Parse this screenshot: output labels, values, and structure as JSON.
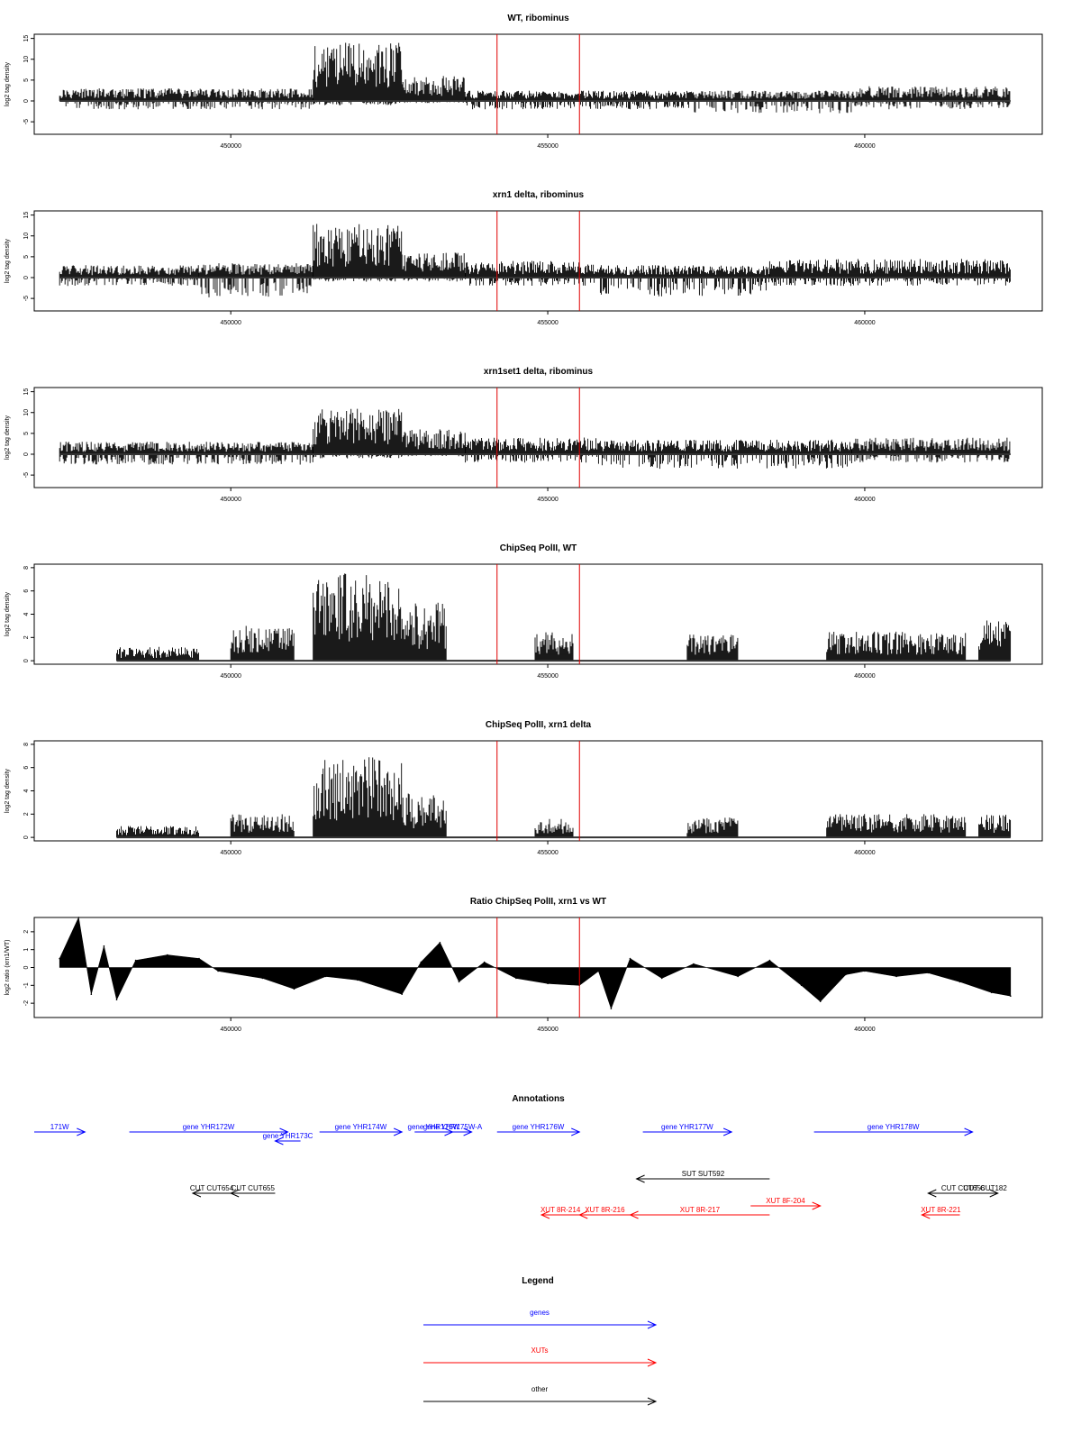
{
  "colors": {
    "trace": "#000000",
    "marker": "#e00000",
    "gene": "#0000ff",
    "xut": "#ff0000",
    "other": "#000000"
  },
  "chart_data": [
    {
      "type": "bar",
      "title": "WT, ribominus",
      "ylabel": "log2 tag density",
      "ylim": [
        -8,
        16
      ],
      "yticks": [
        -5,
        0,
        5,
        10,
        15
      ],
      "xlim": [
        446900,
        462800
      ],
      "xticks": [
        450000,
        455000,
        460000
      ],
      "xticklabels": [
        "450000",
        "455000",
        "460000"
      ],
      "markers": [
        454200,
        455500
      ],
      "profile": [
        {
          "start": 447300,
          "end": 451300,
          "pos": 3,
          "neg": -2
        },
        {
          "start": 451300,
          "end": 452700,
          "pos": 14,
          "neg": -1
        },
        {
          "start": 452700,
          "end": 453700,
          "pos": 6,
          "neg": -0.5
        },
        {
          "start": 453700,
          "end": 457300,
          "pos": 2.5,
          "neg": -2
        },
        {
          "start": 457300,
          "end": 459800,
          "pos": 2.5,
          "neg": -3
        },
        {
          "start": 459800,
          "end": 462300,
          "pos": 3.5,
          "neg": -2
        }
      ]
    },
    {
      "type": "bar",
      "title": "xrn1 delta, ribominus",
      "ylabel": "log2 tag density",
      "ylim": [
        -8,
        16
      ],
      "yticks": [
        -5,
        0,
        5,
        10,
        15
      ],
      "xlim": [
        446900,
        462800
      ],
      "xticks": [
        450000,
        455000,
        460000
      ],
      "xticklabels": [
        "450000",
        "455000",
        "460000"
      ],
      "markers": [
        454200,
        455500
      ],
      "profile": [
        {
          "start": 447300,
          "end": 449500,
          "pos": 3,
          "neg": -2
        },
        {
          "start": 449500,
          "end": 451300,
          "pos": 3.5,
          "neg": -5
        },
        {
          "start": 451300,
          "end": 452700,
          "pos": 13,
          "neg": -1
        },
        {
          "start": 452700,
          "end": 453700,
          "pos": 6,
          "neg": -1
        },
        {
          "start": 453700,
          "end": 455800,
          "pos": 4,
          "neg": -2
        },
        {
          "start": 455800,
          "end": 458500,
          "pos": 3,
          "neg": -4.5
        },
        {
          "start": 458500,
          "end": 462300,
          "pos": 4.5,
          "neg": -2
        }
      ]
    },
    {
      "type": "bar",
      "title": "xrn1set1 delta, ribominus",
      "ylabel": "log2 tag density",
      "ylim": [
        -8,
        16
      ],
      "yticks": [
        -5,
        0,
        5,
        10,
        15
      ],
      "xlim": [
        446900,
        462800
      ],
      "xticks": [
        450000,
        455000,
        460000
      ],
      "xticklabels": [
        "450000",
        "455000",
        "460000"
      ],
      "markers": [
        454200,
        455500
      ],
      "profile": [
        {
          "start": 447300,
          "end": 451300,
          "pos": 3,
          "neg": -2.5
        },
        {
          "start": 451300,
          "end": 452700,
          "pos": 11,
          "neg": -1
        },
        {
          "start": 452700,
          "end": 453700,
          "pos": 6,
          "neg": -0.5
        },
        {
          "start": 453700,
          "end": 455800,
          "pos": 4,
          "neg": -2
        },
        {
          "start": 455800,
          "end": 459800,
          "pos": 3.5,
          "neg": -3.5
        },
        {
          "start": 459800,
          "end": 462300,
          "pos": 4,
          "neg": -2
        }
      ]
    },
    {
      "type": "bar",
      "title": "ChipSeq PolII, WT",
      "ylabel": "log2 tag density",
      "ylim": [
        -0.3,
        8.3
      ],
      "yticks": [
        0,
        2,
        4,
        6,
        8
      ],
      "xlim": [
        446900,
        462800
      ],
      "xticks": [
        450000,
        455000,
        460000
      ],
      "xticklabels": [
        "450000",
        "455000",
        "460000"
      ],
      "markers": [
        454200,
        455500
      ],
      "profile": [
        {
          "start": 448200,
          "end": 449500,
          "pos": 1.2,
          "neg": 0
        },
        {
          "start": 450000,
          "end": 451000,
          "pos": 3,
          "neg": 0
        },
        {
          "start": 451300,
          "end": 452700,
          "pos": 7.5,
          "neg": 0
        },
        {
          "start": 452700,
          "end": 453400,
          "pos": 5,
          "neg": 0
        },
        {
          "start": 454800,
          "end": 455400,
          "pos": 2.5,
          "neg": 0
        },
        {
          "start": 457200,
          "end": 458000,
          "pos": 2.3,
          "neg": 0
        },
        {
          "start": 459400,
          "end": 461600,
          "pos": 2.5,
          "neg": 0
        },
        {
          "start": 461800,
          "end": 462300,
          "pos": 3.5,
          "neg": 0
        }
      ]
    },
    {
      "type": "bar",
      "title": "ChipSeq PolII, xrn1 delta",
      "ylabel": "log2 tag density",
      "ylim": [
        -0.3,
        8.3
      ],
      "yticks": [
        0,
        2,
        4,
        6,
        8
      ],
      "xlim": [
        446900,
        462800
      ],
      "xticks": [
        450000,
        455000,
        460000
      ],
      "xticklabels": [
        "450000",
        "455000",
        "460000"
      ],
      "markers": [
        454200,
        455500
      ],
      "profile": [
        {
          "start": 448200,
          "end": 449500,
          "pos": 1,
          "neg": 0
        },
        {
          "start": 450000,
          "end": 451000,
          "pos": 2,
          "neg": 0
        },
        {
          "start": 451300,
          "end": 452700,
          "pos": 7,
          "neg": 0
        },
        {
          "start": 452700,
          "end": 453400,
          "pos": 3.8,
          "neg": 0
        },
        {
          "start": 454800,
          "end": 455400,
          "pos": 1.6,
          "neg": 0
        },
        {
          "start": 457200,
          "end": 458000,
          "pos": 1.8,
          "neg": 0
        },
        {
          "start": 459400,
          "end": 461600,
          "pos": 2,
          "neg": 0
        },
        {
          "start": 461800,
          "end": 462300,
          "pos": 2,
          "neg": 0
        }
      ]
    },
    {
      "type": "area",
      "title": "Ratio ChipSeq PolII, xrn1 vs WT",
      "ylabel": "log2 ratio (xrn1/WT)",
      "ylim": [
        -2.8,
        2.8
      ],
      "yticks": [
        -2,
        -1,
        0,
        1,
        2
      ],
      "xlim": [
        446900,
        462800
      ],
      "xticks": [
        450000,
        455000,
        460000
      ],
      "xticklabels": [
        "450000",
        "455000",
        "460000"
      ],
      "markers": [
        454200,
        455500
      ],
      "x": [
        447300,
        447600,
        447800,
        448000,
        448200,
        448500,
        449000,
        449500,
        449800,
        450500,
        451000,
        451500,
        452000,
        452700,
        453000,
        453300,
        453600,
        454000,
        454500,
        455000,
        455500,
        455800,
        456000,
        456300,
        456800,
        457300,
        458000,
        458500,
        459000,
        459300,
        459700,
        460000,
        460500,
        461000,
        461500,
        462000,
        462300
      ],
      "y": [
        0.5,
        2.8,
        -1.5,
        1.2,
        -1.8,
        0.4,
        0.7,
        0.5,
        -0.2,
        -0.6,
        -1.2,
        -0.5,
        -0.7,
        -1.5,
        0.3,
        1.4,
        -0.8,
        0.3,
        -0.6,
        -0.9,
        -1.0,
        -0.2,
        -2.3,
        0.5,
        -0.6,
        0.2,
        -0.5,
        0.4,
        -1.0,
        -1.9,
        -0.4,
        -0.2,
        -0.5,
        -0.3,
        -0.8,
        -1.4,
        -1.6
      ]
    }
  ],
  "annotations": {
    "title": "Annotations",
    "features": [
      {
        "label": "171W",
        "kind": "gene",
        "start": 446900,
        "end": 447700,
        "strand": "+",
        "row": 0
      },
      {
        "label": "gene YHR172W",
        "kind": "gene",
        "start": 448400,
        "end": 450900,
        "strand": "+",
        "row": 0
      },
      {
        "label": "gene YHR173C",
        "kind": "gene",
        "start": 450700,
        "end": 451100,
        "strand": "-",
        "row": 1
      },
      {
        "label": "gene YHR174W",
        "kind": "gene",
        "start": 451400,
        "end": 452700,
        "strand": "+",
        "row": 0
      },
      {
        "label": "gene YHR175W",
        "kind": "gene",
        "start": 452900,
        "end": 453500,
        "strand": "+",
        "row": 0
      },
      {
        "label": "gene YHR175W-A",
        "kind": "gene",
        "start": 453200,
        "end": 453800,
        "strand": "+",
        "row": 0
      },
      {
        "label": "gene YHR176W",
        "kind": "gene",
        "start": 454200,
        "end": 455500,
        "strand": "+",
        "row": 0
      },
      {
        "label": "gene YHR177W",
        "kind": "gene",
        "start": 456500,
        "end": 457900,
        "strand": "+",
        "row": 0
      },
      {
        "label": "gene YHR178W",
        "kind": "gene",
        "start": 459200,
        "end": 461700,
        "strand": "+",
        "row": 0
      },
      {
        "label": "SUT SUT592",
        "kind": "other",
        "start": 456400,
        "end": 458500,
        "strand": "-",
        "row": 2
      },
      {
        "label": "CUT CUT182",
        "kind": "other",
        "start": 461700,
        "end": 462100,
        "strand": "+",
        "row": 3
      },
      {
        "label": "CUT CUT654",
        "kind": "other",
        "start": 449400,
        "end": 450000,
        "strand": "-",
        "row": 3
      },
      {
        "label": "CUT CUT655",
        "kind": "other",
        "start": 450000,
        "end": 450700,
        "strand": "-",
        "row": 3
      },
      {
        "label": "CUT CUT656",
        "kind": "other",
        "start": 461000,
        "end": 462100,
        "strand": "-",
        "row": 3
      },
      {
        "label": "XUT 8F-204",
        "kind": "xut",
        "start": 458200,
        "end": 459300,
        "strand": "+",
        "row": 4
      },
      {
        "label": "XUT 8R-214",
        "kind": "xut",
        "start": 454900,
        "end": 455500,
        "strand": "-",
        "row": 5
      },
      {
        "label": "XUT 8R-216",
        "kind": "xut",
        "start": 455500,
        "end": 456300,
        "strand": "-",
        "row": 5
      },
      {
        "label": "XUT 8R-217",
        "kind": "xut",
        "start": 456300,
        "end": 458500,
        "strand": "-",
        "row": 5
      },
      {
        "label": "XUT 8R-221",
        "kind": "xut",
        "start": 460900,
        "end": 461500,
        "strand": "-",
        "row": 5
      }
    ]
  },
  "legend": {
    "title": "Legend",
    "items": [
      {
        "label": "genes",
        "kind": "gene"
      },
      {
        "label": "XUTs",
        "kind": "xut"
      },
      {
        "label": "other",
        "kind": "other"
      }
    ]
  }
}
